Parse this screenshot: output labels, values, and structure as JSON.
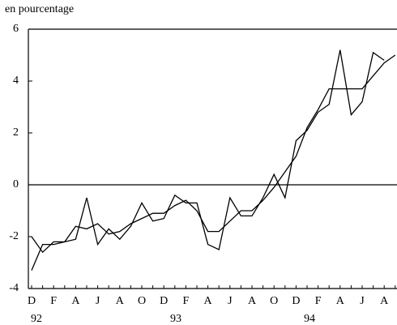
{
  "chart_data": {
    "type": "line",
    "y_label": "en pourcentage",
    "categories": [
      "D",
      null,
      "F",
      null,
      "A",
      null,
      "J",
      null,
      "A",
      null,
      "O",
      null,
      "D",
      null,
      "F",
      null,
      "A",
      null,
      "J",
      null,
      "A",
      null,
      "O",
      null,
      "D",
      null,
      "F",
      null,
      "A",
      null,
      "J",
      null,
      "A",
      null
    ],
    "year_labels": [
      "92",
      "93",
      "94"
    ],
    "series": [
      {
        "color": "#000000",
        "values": [
          -2.0,
          -2.6,
          -2.2,
          -2.2,
          -2.1,
          -0.5,
          -2.3,
          -1.7,
          -2.1,
          -1.6,
          -0.7,
          -1.4,
          -1.3,
          -0.4,
          -0.7,
          -0.7,
          -2.3,
          -2.5,
          -0.5,
          -1.2,
          -1.2,
          -0.5,
          0.4,
          -0.5,
          1.7,
          2.1,
          2.8,
          3.1,
          5.2,
          2.7,
          3.2,
          5.1,
          4.8,
          null
        ]
      },
      {
        "color": "#000000",
        "values": [
          -3.3,
          -2.3,
          -2.3,
          -2.2,
          -1.6,
          -1.7,
          -1.5,
          -1.9,
          -1.8,
          -1.5,
          -1.3,
          -1.1,
          -1.1,
          -0.8,
          -0.6,
          -1.0,
          -1.8,
          -1.8,
          -1.4,
          -1.0,
          -1.0,
          -0.6,
          -0.1,
          0.5,
          1.1,
          2.2,
          2.9,
          3.7,
          3.7,
          3.7,
          3.7,
          4.2,
          4.7,
          5.0
        ]
      }
    ],
    "ylim": [
      -4,
      6
    ],
    "yticks": [
      -4,
      -2,
      0,
      2,
      4,
      6
    ],
    "zero_line": true
  }
}
